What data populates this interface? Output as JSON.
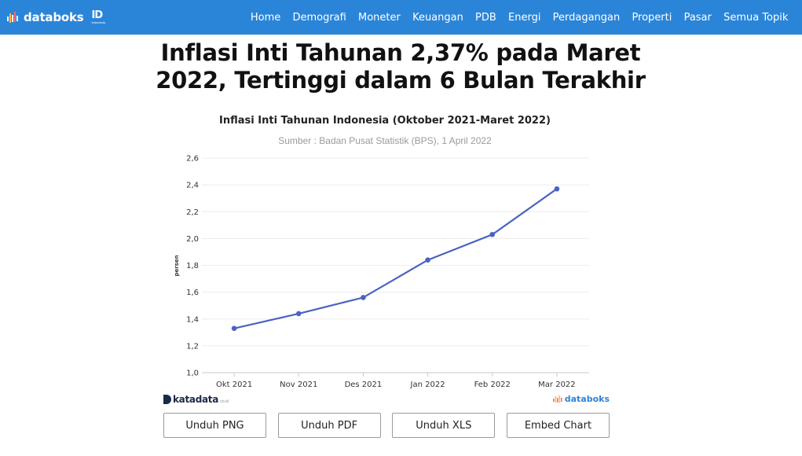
{
  "header": {
    "brand_name": "databoks",
    "brand_badge": "ID",
    "brand_badge_sub": "Indonesia",
    "nav": [
      "Home",
      "Demografi",
      "Moneter",
      "Keuangan",
      "PDB",
      "Energi",
      "Perdagangan",
      "Properti",
      "Pasar",
      "Semua Topik"
    ],
    "bg_color": "#2a85d8"
  },
  "headline": "Inflasi Inti Tahunan 2,37% pada Maret 2022, Tertinggi dalam 6 Bulan Terakhir",
  "chart_data": {
    "type": "line",
    "title": "Inflasi Inti Tahunan Indonesia (Oktober 2021-Maret 2022)",
    "subtitle": "Sumber : Badan Pusat Statistik (BPS), 1 April 2022",
    "xlabel": "",
    "ylabel": "persen",
    "categories": [
      "Okt 2021",
      "Nov 2021",
      "Des 2021",
      "Jan 2022",
      "Feb 2022",
      "Mar 2022"
    ],
    "values": [
      1.33,
      1.44,
      1.56,
      1.84,
      2.03,
      2.37
    ],
    "ylim": [
      1.0,
      2.6
    ],
    "yticks": [
      "1,0",
      "1,2",
      "1,4",
      "1,6",
      "1,8",
      "2,0",
      "2,2",
      "2,4",
      "2,6"
    ],
    "grid": true,
    "line_color": "#4a63c2",
    "legend": "none"
  },
  "footer": {
    "left_brand": "katadata",
    "left_brand_suffix": ".co.id",
    "right_brand": "databoks"
  },
  "buttons": {
    "png": "Unduh PNG",
    "pdf": "Unduh PDF",
    "xls": "Unduh XLS",
    "embed": "Embed Chart"
  }
}
